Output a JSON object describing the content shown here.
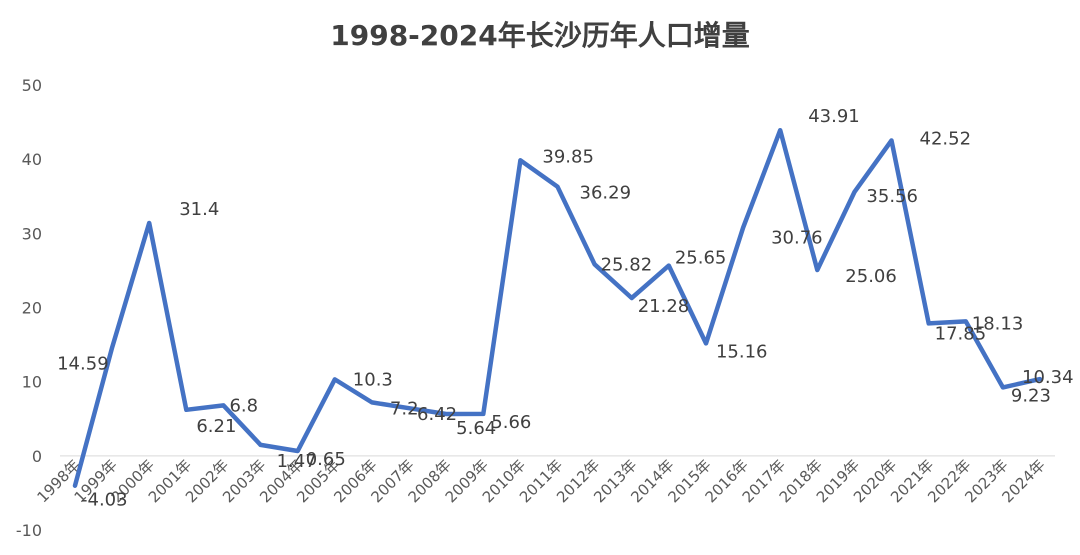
{
  "chart_data": {
    "type": "line",
    "title": "1998-2024年长沙历年人口增量",
    "xlabel": "",
    "ylabel": "",
    "ylim": [
      -10,
      50
    ],
    "yticks": [
      "-10",
      "0",
      "10",
      "20",
      "30",
      "40",
      "50"
    ],
    "grid": false,
    "legend": "none",
    "categories": [
      "1998年",
      "1999年",
      "2000年",
      "2001年",
      "2002年",
      "2003年",
      "2004年",
      "2005年",
      "2006年",
      "2007年",
      "2008年",
      "2009年",
      "2010年",
      "2011年",
      "2012年",
      "2013年",
      "2014年",
      "2015年",
      "2016年",
      "2017年",
      "2018年",
      "2019年",
      "2020年",
      "2021年",
      "2022年",
      "2023年",
      "2024年"
    ],
    "series": [
      {
        "color": "#4472c4",
        "values": [
          -4.03,
          14.59,
          31.4,
          6.21,
          6.8,
          1.47,
          0.65,
          10.3,
          7.2,
          6.42,
          5.64,
          5.66,
          39.85,
          36.29,
          25.82,
          21.28,
          25.65,
          15.16,
          30.76,
          43.91,
          25.06,
          35.56,
          42.52,
          17.85,
          18.13,
          9.23,
          10.34
        ],
        "data_labels": [
          "-4.03",
          "14.59",
          "31.4",
          "6.21",
          "6.8",
          "1.47",
          "0.65",
          "10.3",
          "7.2",
          "6.42",
          "5.64",
          "5.66",
          "39.85",
          "36.29",
          "25.82",
          "21.28",
          "25.65",
          "15.16",
          "30.76",
          "43.91",
          "25.06",
          "35.56",
          "42.52",
          "17.85",
          "18.13",
          "9.23",
          "10.34"
        ]
      }
    ]
  }
}
